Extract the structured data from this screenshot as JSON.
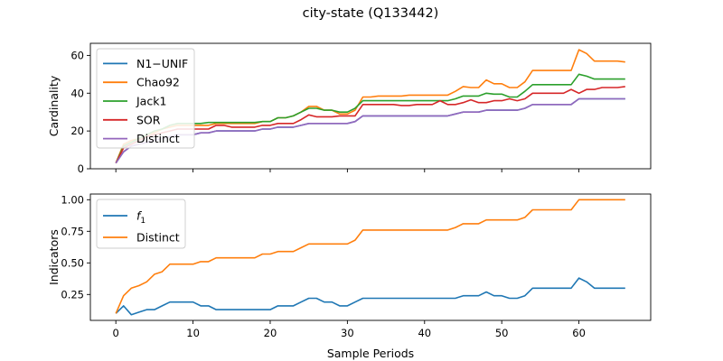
{
  "figure": {
    "title": "city-state (Q133442)"
  },
  "chart_data": [
    {
      "type": "line",
      "title": "",
      "xlabel": "",
      "ylabel": "Cardinality",
      "xlim": [
        -3.3,
        69.3
      ],
      "ylim": [
        0,
        66.4
      ],
      "xticks": [
        0,
        10,
        20,
        30,
        40,
        50,
        60
      ],
      "yticks": [
        0,
        20,
        40,
        60
      ],
      "show_xtick_labels": false,
      "grid": false,
      "legend": "upper left",
      "series": [
        {
          "name": "N1−UNIF",
          "color": "#1f77b4",
          "x": [
            0,
            1,
            2,
            3,
            4,
            5,
            6,
            7,
            8,
            9,
            10,
            11,
            12,
            13,
            14,
            15,
            16,
            17,
            18,
            19,
            20,
            21,
            22,
            23,
            24,
            25,
            26,
            27,
            28,
            29,
            30,
            31,
            32,
            33,
            34,
            35,
            36,
            37,
            38,
            39,
            40,
            41,
            42,
            43,
            44,
            45,
            46,
            47,
            48,
            49,
            50,
            51,
            52,
            53,
            54,
            55,
            56,
            57,
            58,
            59,
            60,
            61,
            62,
            63,
            64,
            65,
            66
          ],
          "y": [
            3,
            9,
            12,
            13,
            14,
            15,
            16,
            17,
            18,
            18,
            18,
            19,
            19,
            20,
            20,
            20,
            20,
            20,
            20,
            21,
            21,
            22,
            22,
            22,
            23,
            24,
            24,
            24,
            24,
            24,
            24,
            25,
            28,
            28,
            28,
            28,
            28,
            28,
            28,
            28,
            28,
            28,
            28,
            28,
            29,
            30,
            30,
            30,
            31,
            31,
            31,
            31,
            31,
            32,
            34,
            34,
            34,
            34,
            34,
            34,
            37,
            37,
            37,
            37,
            37,
            37,
            37
          ]
        },
        {
          "name": "Chao92",
          "color": "#ff7f0e",
          "x": [
            0,
            1,
            2,
            3,
            4,
            5,
            6,
            7,
            8,
            9,
            10,
            11,
            12,
            13,
            14,
            15,
            16,
            17,
            18,
            19,
            20,
            21,
            22,
            23,
            24,
            25,
            26,
            27,
            28,
            29,
            30,
            31,
            32,
            33,
            34,
            35,
            36,
            37,
            38,
            39,
            40,
            41,
            42,
            43,
            44,
            45,
            46,
            47,
            48,
            49,
            50,
            51,
            52,
            53,
            54,
            55,
            56,
            57,
            58,
            59,
            60,
            61,
            62,
            63,
            64,
            65,
            66
          ],
          "y": [
            3,
            13,
            15,
            16,
            18,
            19,
            21,
            22,
            23,
            23,
            23,
            23,
            23,
            24,
            24,
            24,
            24,
            24,
            24,
            25,
            25,
            27,
            27,
            28,
            30,
            33,
            33,
            31,
            31,
            29,
            29,
            31,
            38,
            38,
            38.5,
            38.5,
            38.5,
            38.5,
            39,
            39,
            39,
            39,
            39,
            39,
            41,
            43.5,
            43,
            43,
            47,
            45,
            45,
            43,
            43,
            46,
            52,
            52,
            52,
            52,
            52,
            52,
            63,
            61,
            57,
            57,
            57,
            57,
            56.5
          ]
        },
        {
          "name": "Jack1",
          "color": "#2ca02c",
          "x": [
            0,
            1,
            2,
            3,
            4,
            5,
            6,
            7,
            8,
            9,
            10,
            11,
            12,
            13,
            14,
            15,
            16,
            17,
            18,
            19,
            20,
            21,
            22,
            23,
            24,
            25,
            26,
            27,
            28,
            29,
            30,
            31,
            32,
            33,
            34,
            35,
            36,
            37,
            38,
            39,
            40,
            41,
            42,
            43,
            44,
            45,
            46,
            47,
            48,
            49,
            50,
            51,
            52,
            53,
            54,
            55,
            56,
            57,
            58,
            59,
            60,
            61,
            62,
            63,
            64,
            65,
            66
          ],
          "y": [
            3,
            12,
            14,
            16,
            18,
            20,
            21,
            23,
            24,
            24,
            24,
            24,
            24.5,
            24.5,
            24.5,
            24.5,
            24.5,
            24.5,
            24.5,
            25,
            25,
            27,
            27,
            28,
            30,
            32,
            32,
            31,
            31,
            30,
            30,
            32,
            36,
            36,
            36,
            36,
            36,
            36,
            36,
            36,
            36,
            36,
            36,
            36,
            37,
            38.5,
            38.5,
            38.5,
            40,
            39.5,
            39.5,
            38,
            38,
            41,
            44.5,
            44.5,
            44.5,
            44.5,
            44.5,
            44.5,
            50,
            49,
            47.5,
            47.5,
            47.5,
            47.5,
            47.5
          ]
        },
        {
          "name": "SOR",
          "color": "#d62728",
          "x": [
            0,
            1,
            2,
            3,
            4,
            5,
            6,
            7,
            8,
            9,
            10,
            11,
            12,
            13,
            14,
            15,
            16,
            17,
            18,
            19,
            20,
            21,
            22,
            23,
            24,
            25,
            26,
            27,
            28,
            29,
            30,
            31,
            32,
            33,
            34,
            35,
            36,
            37,
            38,
            39,
            40,
            41,
            42,
            43,
            44,
            45,
            46,
            47,
            48,
            49,
            50,
            51,
            52,
            53,
            54,
            55,
            56,
            57,
            58,
            59,
            60,
            61,
            62,
            63,
            64,
            65,
            66
          ],
          "y": [
            3,
            11,
            13,
            15,
            17,
            18,
            19,
            20,
            21,
            21,
            21,
            21,
            21,
            23,
            23,
            22,
            22,
            22,
            22,
            23,
            23,
            24,
            24,
            24,
            26,
            28.5,
            27.5,
            27.5,
            27.5,
            28,
            28,
            28,
            34,
            34,
            34,
            34,
            34,
            33.5,
            33.5,
            34,
            34,
            34,
            36,
            34,
            34,
            35,
            36.5,
            35,
            35,
            36,
            36,
            37,
            36,
            37,
            40,
            40,
            40,
            40,
            40,
            42,
            40,
            42,
            42,
            43,
            43,
            43,
            43.5
          ]
        },
        {
          "name": "Distinct",
          "color": "#9467bd",
          "x": [
            0,
            1,
            2,
            3,
            4,
            5,
            6,
            7,
            8,
            9,
            10,
            11,
            12,
            13,
            14,
            15,
            16,
            17,
            18,
            19,
            20,
            21,
            22,
            23,
            24,
            25,
            26,
            27,
            28,
            29,
            30,
            31,
            32,
            33,
            34,
            35,
            36,
            37,
            38,
            39,
            40,
            41,
            42,
            43,
            44,
            45,
            46,
            47,
            48,
            49,
            50,
            51,
            52,
            53,
            54,
            55,
            56,
            57,
            58,
            59,
            60,
            61,
            62,
            63,
            64,
            65,
            66
          ],
          "y": [
            3,
            9,
            12,
            13,
            14,
            15,
            16,
            17,
            18,
            18,
            18,
            19,
            19,
            20,
            20,
            20,
            20,
            20,
            20,
            21,
            21,
            22,
            22,
            22,
            23,
            24,
            24,
            24,
            24,
            24,
            24,
            25,
            28,
            28,
            28,
            28,
            28,
            28,
            28,
            28,
            28,
            28,
            28,
            28,
            29,
            30,
            30,
            30,
            31,
            31,
            31,
            31,
            31,
            32,
            34,
            34,
            34,
            34,
            34,
            34,
            37,
            37,
            37,
            37,
            37,
            37,
            37
          ]
        }
      ]
    },
    {
      "type": "line",
      "title": "",
      "xlabel": "Sample Periods",
      "ylabel": "Indicators",
      "xlim": [
        -3.3,
        69.3
      ],
      "ylim": [
        0.045,
        1.045
      ],
      "xticks": [
        0,
        10,
        20,
        30,
        40,
        50,
        60
      ],
      "yticks": [
        0.25,
        0.5,
        0.75,
        1.0
      ],
      "ytick_labels": [
        "0.25",
        "0.50",
        "0.75",
        "1.00"
      ],
      "show_xtick_labels": true,
      "grid": false,
      "legend": "upper left",
      "series": [
        {
          "name": "f",
          "name_subscript": "1",
          "color": "#1f77b4",
          "x": [
            0,
            1,
            2,
            3,
            4,
            5,
            6,
            7,
            8,
            9,
            10,
            11,
            12,
            13,
            14,
            15,
            16,
            17,
            18,
            19,
            20,
            21,
            22,
            23,
            24,
            25,
            26,
            27,
            28,
            29,
            30,
            31,
            32,
            33,
            34,
            35,
            36,
            37,
            38,
            39,
            40,
            41,
            42,
            43,
            44,
            45,
            46,
            47,
            48,
            49,
            50,
            51,
            52,
            53,
            54,
            55,
            56,
            57,
            58,
            59,
            60,
            61,
            62,
            63,
            64,
            65,
            66
          ],
          "y": [
            0.1,
            0.16,
            0.09,
            0.11,
            0.13,
            0.13,
            0.16,
            0.19,
            0.19,
            0.19,
            0.19,
            0.16,
            0.16,
            0.13,
            0.13,
            0.13,
            0.13,
            0.13,
            0.13,
            0.13,
            0.13,
            0.16,
            0.16,
            0.16,
            0.19,
            0.22,
            0.22,
            0.19,
            0.19,
            0.16,
            0.16,
            0.19,
            0.22,
            0.22,
            0.22,
            0.22,
            0.22,
            0.22,
            0.22,
            0.22,
            0.22,
            0.22,
            0.22,
            0.22,
            0.22,
            0.24,
            0.24,
            0.24,
            0.27,
            0.24,
            0.24,
            0.22,
            0.22,
            0.24,
            0.3,
            0.3,
            0.3,
            0.3,
            0.3,
            0.3,
            0.38,
            0.35,
            0.3,
            0.3,
            0.3,
            0.3,
            0.3
          ]
        },
        {
          "name": "Distinct",
          "color": "#ff7f0e",
          "x": [
            0,
            1,
            2,
            3,
            4,
            5,
            6,
            7,
            8,
            9,
            10,
            11,
            12,
            13,
            14,
            15,
            16,
            17,
            18,
            19,
            20,
            21,
            22,
            23,
            24,
            25,
            26,
            27,
            28,
            29,
            30,
            31,
            32,
            33,
            34,
            35,
            36,
            37,
            38,
            39,
            40,
            41,
            42,
            43,
            44,
            45,
            46,
            47,
            48,
            49,
            50,
            51,
            52,
            53,
            54,
            55,
            56,
            57,
            58,
            59,
            60,
            61,
            62,
            63,
            64,
            65,
            66
          ],
          "y": [
            0.1,
            0.24,
            0.3,
            0.32,
            0.35,
            0.41,
            0.43,
            0.49,
            0.49,
            0.49,
            0.49,
            0.51,
            0.51,
            0.54,
            0.54,
            0.54,
            0.54,
            0.54,
            0.54,
            0.57,
            0.57,
            0.59,
            0.59,
            0.59,
            0.62,
            0.65,
            0.65,
            0.65,
            0.65,
            0.65,
            0.65,
            0.68,
            0.76,
            0.76,
            0.76,
            0.76,
            0.76,
            0.76,
            0.76,
            0.76,
            0.76,
            0.76,
            0.76,
            0.76,
            0.78,
            0.81,
            0.81,
            0.81,
            0.84,
            0.84,
            0.84,
            0.84,
            0.84,
            0.86,
            0.92,
            0.92,
            0.92,
            0.92,
            0.92,
            0.92,
            1.0,
            1.0,
            1.0,
            1.0,
            1.0,
            1.0,
            1.0
          ]
        }
      ]
    }
  ]
}
